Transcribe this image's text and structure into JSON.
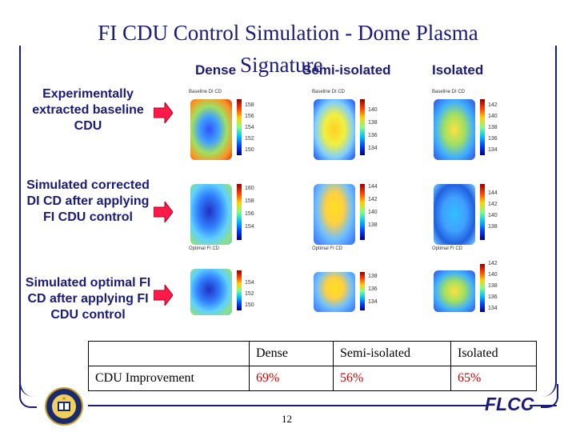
{
  "slide": {
    "title_line1": "FI CDU Control Simulation - Dome Plasma",
    "title_line2": "Signature",
    "page_number": "12",
    "footer_brand": "FLCC"
  },
  "columns": [
    "Dense",
    "Semi-isolated",
    "Isolated"
  ],
  "rows": [
    {
      "label": "Experimentally extracted baseline CDU"
    },
    {
      "label": "Simulated corrected DI CD after applying FI CDU control"
    },
    {
      "label": "Simulated optimal FI CD after applying FI CDU control"
    }
  ],
  "plots": {
    "row1": [
      {
        "title": "Baseline DI CD",
        "ticks": [
          "158",
          "156",
          "154",
          "152",
          "150"
        ]
      },
      {
        "title": "Baseline DI CD",
        "ticks": [
          "140",
          "138",
          "136",
          "134"
        ]
      },
      {
        "title": "Baseline DI CD",
        "ticks": [
          "142",
          "140",
          "138",
          "136",
          "134"
        ]
      }
    ],
    "row2": [
      {
        "title": "",
        "ticks": [
          "160",
          "158",
          "156",
          "154"
        ]
      },
      {
        "title": "",
        "ticks": [
          "144",
          "142",
          "140",
          "138"
        ]
      },
      {
        "title": "",
        "ticks": [
          "144",
          "142",
          "140",
          "138"
        ]
      }
    ],
    "row3": [
      {
        "title": "Optimal FI CD",
        "ticks": [
          "154",
          "152",
          "150"
        ]
      },
      {
        "title": "Optimal FI CD",
        "ticks": [
          "138",
          "136",
          "134"
        ]
      },
      {
        "title": "Optimal FI CD",
        "ticks": [
          "142",
          "140",
          "138",
          "136",
          "134"
        ]
      }
    ]
  },
  "improvement_table": {
    "header": [
      "",
      "Dense",
      "Semi-isolated",
      "Isolated"
    ],
    "row_label": "CDU Improvement",
    "values": [
      "69%",
      "56%",
      "65%"
    ]
  },
  "colors": {
    "title": "#1a1a7a",
    "arrow": "#ff1a4a",
    "improvement": "#cc0000"
  }
}
